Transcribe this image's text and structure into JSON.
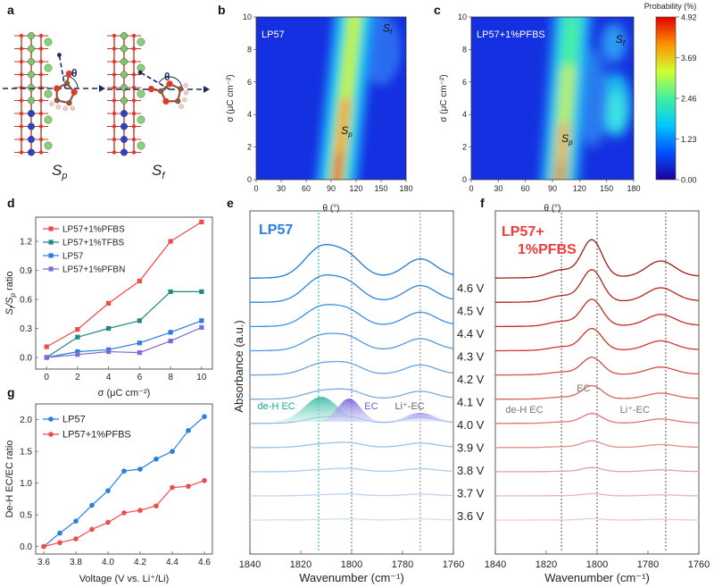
{
  "panels": {
    "a": {
      "letter": "a",
      "angle_symbol": "θ",
      "structures": [
        {
          "label": "S",
          "subscript": "p"
        },
        {
          "label": "S",
          "subscript": "f"
        }
      ]
    },
    "colorbar": {
      "title": "Probability (%)",
      "ticks": [
        "4.92",
        "3.69",
        "2.46",
        "1.23",
        "0.00"
      ],
      "colors": [
        "#1a00a0",
        "#0050ff",
        "#00c8ff",
        "#40f0a0",
        "#d0ff30",
        "#ff9000",
        "#e00000"
      ]
    }
  },
  "chart_data": [
    {
      "id": "b",
      "letter": "b",
      "type": "heatmap",
      "title": "LP57",
      "xlabel": "θ (°)",
      "ylabel": "σ (μC cm⁻²)",
      "xlim": [
        0,
        180
      ],
      "ylim": [
        0,
        10
      ],
      "xticks": [
        "0",
        "30",
        "60",
        "90",
        "120",
        "150",
        "180"
      ],
      "yticks": [
        "0",
        "2",
        "4",
        "6",
        "8",
        "10"
      ],
      "band_center_bottom": 97,
      "band_center_top": 118,
      "annotations": [
        {
          "text": "S",
          "sub": "f",
          "x": 152,
          "y": 9.1
        },
        {
          "text": "S",
          "sub": "p",
          "x": 102,
          "y": 2.8
        }
      ]
    },
    {
      "id": "c",
      "letter": "c",
      "type": "heatmap",
      "title": "LP57+1%PFBS",
      "xlabel": "θ (°)",
      "ylabel": "σ (μC cm⁻²)",
      "xlim": [
        0,
        180
      ],
      "ylim": [
        0,
        10
      ],
      "xticks": [
        "0",
        "30",
        "60",
        "90",
        "120",
        "150",
        "180"
      ],
      "yticks": [
        "0",
        "2",
        "4",
        "6",
        "8",
        "10"
      ],
      "band_center_bottom": 98,
      "band_center_top": 112,
      "annotations": [
        {
          "text": "S",
          "sub": "f",
          "x": 160,
          "y": 8.4
        },
        {
          "text": "S",
          "sub": "p",
          "x": 100,
          "y": 2.3
        }
      ]
    },
    {
      "id": "d",
      "letter": "d",
      "type": "line",
      "xlabel": "σ (μC cm⁻²)",
      "ylabel": "S_f/S_p ratio",
      "ylabel_parts": [
        "S",
        "f",
        "/S",
        "p",
        " ratio"
      ],
      "xlim": [
        -0.7,
        10.7
      ],
      "ylim": [
        -0.12,
        1.45
      ],
      "xticks": [
        0,
        2,
        4,
        6,
        8,
        10
      ],
      "yticks": [
        "0.0",
        "0.3",
        "0.6",
        "0.9",
        "1.2"
      ],
      "ytick_values": [
        0.0,
        0.3,
        0.6,
        0.9,
        1.2
      ],
      "x": [
        0,
        2,
        4,
        6,
        8,
        10
      ],
      "series": [
        {
          "name": "LP57+1%PFBS",
          "color": "#ef4b4b",
          "values": [
            0.11,
            0.29,
            0.56,
            0.79,
            1.2,
            1.4
          ]
        },
        {
          "name": "LP57+1%TFBS",
          "color": "#1f8a80",
          "values": [
            0.0,
            0.21,
            0.3,
            0.38,
            0.68,
            0.68
          ]
        },
        {
          "name": "LP57",
          "color": "#2a7ee0",
          "values": [
            0.0,
            0.06,
            0.08,
            0.15,
            0.26,
            0.38
          ]
        },
        {
          "name": "LP57+1%PFBN",
          "color": "#7d6bd6",
          "values": [
            0.0,
            0.03,
            0.06,
            0.05,
            0.17,
            0.31
          ]
        }
      ]
    },
    {
      "id": "e",
      "letter": "e",
      "type": "line",
      "title": "LP57",
      "xlabel": "Wavenumber (cm⁻¹)",
      "ylabel": "Absorbance (a.u.)",
      "xlim": [
        1840,
        1760
      ],
      "xticks": [
        1840,
        1820,
        1800,
        1780,
        1760
      ],
      "voltages": [
        "4.6 V",
        "4.5 V",
        "4.4 V",
        "4.3 V",
        "4.2 V",
        "4.1 V",
        "4.0 V",
        "3.9 V",
        "3.8 V",
        "3.7 V",
        "3.6 V"
      ],
      "ref_lines": [
        1813,
        1800,
        1773
      ],
      "peak_labels": [
        "de-H EC",
        "EC",
        "Li⁺-EC"
      ]
    },
    {
      "id": "f",
      "letter": "f",
      "type": "line",
      "title": "LP57+\n1%PFBS",
      "title_lines": [
        "LP57+",
        "1%PFBS"
      ],
      "xlabel": "Wavenumber (cm⁻¹)",
      "xlim": [
        1840,
        1760
      ],
      "xticks": [
        1840,
        1820,
        1800,
        1780,
        1760
      ],
      "ref_lines": [
        1814,
        1800,
        1773
      ],
      "peak_labels": [
        "de-H EC",
        "EC",
        "Li⁺-EC"
      ]
    },
    {
      "id": "g",
      "letter": "g",
      "type": "line",
      "xlabel": "Voltage (V vs. Li⁺/Li)",
      "ylabel": "De-H EC/EC ratio",
      "xlim": [
        3.55,
        4.65
      ],
      "ylim": [
        -0.12,
        2.25
      ],
      "xticks": [
        "3.6",
        "3.8",
        "4.0",
        "4.2",
        "4.4",
        "4.6"
      ],
      "xtick_values": [
        3.6,
        3.8,
        4.0,
        4.2,
        4.4,
        4.6
      ],
      "yticks": [
        "0.0",
        "0.5",
        "1.0",
        "1.5",
        "2.0"
      ],
      "ytick_values": [
        0.0,
        0.5,
        1.0,
        1.5,
        2.0
      ],
      "x": [
        3.6,
        3.7,
        3.8,
        3.9,
        4.0,
        4.1,
        4.2,
        4.3,
        4.4,
        4.5,
        4.6
      ],
      "series": [
        {
          "name": "LP57",
          "color": "#2a7ee0",
          "values": [
            0.0,
            0.21,
            0.4,
            0.65,
            0.88,
            1.19,
            1.22,
            1.38,
            1.5,
            1.83,
            2.05
          ]
        },
        {
          "name": "LP57+1%PFBS",
          "color": "#ef4b4b",
          "values": [
            0.0,
            0.06,
            0.12,
            0.27,
            0.38,
            0.53,
            0.57,
            0.64,
            0.93,
            0.95,
            1.04
          ]
        }
      ]
    }
  ]
}
